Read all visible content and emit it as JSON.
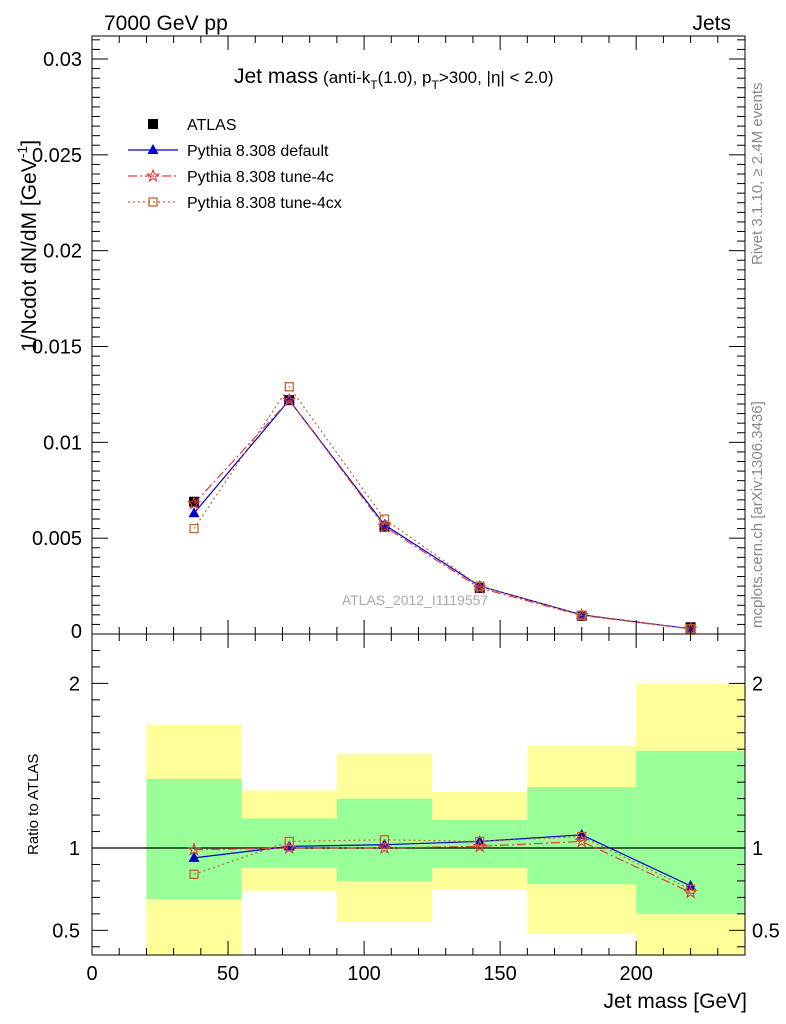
{
  "header": {
    "left": "7000 GeV pp",
    "right": "Jets"
  },
  "side_labels": {
    "rivet": "Rivet 3.1.10, ≥ 2.4M events",
    "mcplots": "mcplots.cern.ch [arXiv:1306.3436]"
  },
  "watermark": "ATLAS_2012_I1119557",
  "colors": {
    "atlas": "#000000",
    "default": "#0000cc",
    "tune4c": "#e03c3c",
    "tune4cx": "#c86428",
    "band_inner": "#99ff99",
    "band_outer": "#ffff99"
  },
  "chart_data": [
    {
      "type": "line",
      "title": "Jet mass",
      "subtitle": "(anti-k_T(1.0), p_T>300, |η| < 2.0)",
      "title_parts": {
        "main": "Jet mass",
        "a": "(anti-k",
        "a_sub": "T",
        "b": "(1.0), p",
        "b_sub": "T",
        "c": ">300, |η| < 2.0)"
      },
      "ylabel": "1/Ncdot dN/dM [GeV⁻¹]",
      "ylabel_parts": {
        "main": "1/Ncdot dN/dM [GeV",
        "sup": "-1",
        "end": "]"
      },
      "xlim": [
        0,
        240
      ],
      "ylim": [
        0,
        0.0312
      ],
      "yticks": [
        0.005,
        0.01,
        0.015,
        0.02,
        0.025,
        0.03
      ],
      "ytick_labels": [
        "0.005",
        "0.01",
        "0.015",
        "0.02",
        "0.025",
        "0.03"
      ],
      "ytick_zero_label": "0",
      "legend_position": "top-left",
      "x": [
        37.5,
        72.5,
        107.5,
        142.5,
        180,
        220
      ],
      "series": [
        {
          "name": "ATLAS",
          "values": [
            0.0069,
            0.0122,
            0.0056,
            0.0024,
            0.00095,
            0.00035
          ]
        },
        {
          "name": "Pythia 8.308 default",
          "values": [
            0.0063,
            0.0122,
            0.0057,
            0.0025,
            0.001,
            0.00027
          ]
        },
        {
          "name": "Pythia 8.308 tune-4c",
          "values": [
            0.0068,
            0.0122,
            0.0056,
            0.0024,
            0.00097,
            0.00026
          ]
        },
        {
          "name": "Pythia 8.308 tune-4cx",
          "values": [
            0.0055,
            0.0129,
            0.006,
            0.0025,
            0.00098,
            0.00027
          ]
        }
      ]
    },
    {
      "type": "line",
      "ylabel": "Ratio to ATLAS",
      "xlabel": "Jet mass [GeV]",
      "xlim": [
        0,
        240
      ],
      "ylim": [
        0.35,
        2.3
      ],
      "xticks": [
        0,
        50,
        100,
        150,
        200
      ],
      "xtick_labels": [
        "0",
        "50",
        "100",
        "150",
        "200"
      ],
      "yticks": [
        0.5,
        1,
        2
      ],
      "ytick_labels": [
        "0.5",
        "1",
        "2"
      ],
      "bins": [
        {
          "lo": 20,
          "hi": 55,
          "inner": [
            0.69,
            1.42
          ],
          "outer": [
            0.35,
            1.75
          ]
        },
        {
          "lo": 55,
          "hi": 90,
          "inner": [
            0.88,
            1.18
          ],
          "outer": [
            0.74,
            1.35
          ]
        },
        {
          "lo": 90,
          "hi": 125,
          "inner": [
            0.8,
            1.3
          ],
          "outer": [
            0.55,
            1.57
          ]
        },
        {
          "lo": 125,
          "hi": 160,
          "inner": [
            0.88,
            1.17
          ],
          "outer": [
            0.75,
            1.34
          ]
        },
        {
          "lo": 160,
          "hi": 200,
          "inner": [
            0.78,
            1.37
          ],
          "outer": [
            0.48,
            1.62
          ]
        },
        {
          "lo": 200,
          "hi": 240,
          "inner": [
            0.6,
            1.59
          ],
          "outer": [
            0.35,
            2.0
          ]
        }
      ],
      "x": [
        37.5,
        72.5,
        107.5,
        142.5,
        180,
        220
      ],
      "series": [
        {
          "name": "Pythia 8.308 default",
          "values": [
            0.94,
            1.01,
            1.02,
            1.04,
            1.08,
            0.77
          ]
        },
        {
          "name": "Pythia 8.308 tune-4c",
          "values": [
            0.99,
            1.0,
            1.0,
            1.01,
            1.04,
            0.73
          ]
        },
        {
          "name": "Pythia 8.308 tune-4cx",
          "values": [
            0.84,
            1.04,
            1.05,
            1.04,
            1.07,
            0.75
          ]
        }
      ]
    }
  ]
}
